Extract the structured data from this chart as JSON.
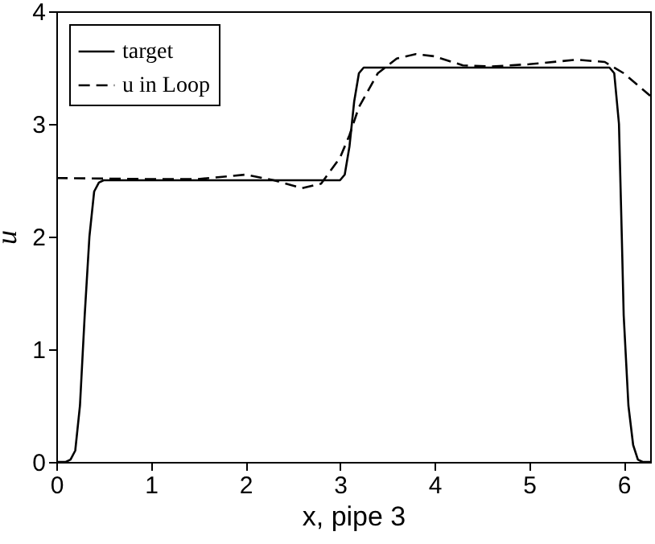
{
  "chart_data": {
    "type": "line",
    "xlabel": "x, pipe 3",
    "ylabel": "u",
    "xlim": [
      0,
      6.28
    ],
    "ylim": [
      0,
      4
    ],
    "xticks": [
      0,
      1,
      2,
      3,
      4,
      5,
      6
    ],
    "yticks": [
      0,
      1,
      2,
      3,
      4
    ],
    "grid": false,
    "legend": "top left",
    "marker": "none",
    "series": [
      {
        "name": "target",
        "color": "#000000",
        "line_style": "solid",
        "x": [
          0,
          0.1,
          0.15,
          0.2,
          0.25,
          0.3,
          0.35,
          0.4,
          0.45,
          0.5,
          3.0,
          3.05,
          3.1,
          3.15,
          3.2,
          3.25,
          5.85,
          5.9,
          5.95,
          5.98,
          6.0,
          6.05,
          6.1,
          6.15,
          6.2,
          6.28
        ],
        "values": [
          0,
          0,
          0.02,
          0.1,
          0.5,
          1.3,
          2.0,
          2.4,
          2.48,
          2.5,
          2.5,
          2.55,
          2.8,
          3.2,
          3.45,
          3.5,
          3.5,
          3.45,
          3.0,
          2.0,
          1.3,
          0.5,
          0.15,
          0.02,
          0,
          0
        ]
      },
      {
        "name": "u in Loop",
        "color": "#000000",
        "line_style": "dashed",
        "x": [
          0,
          1.0,
          1.5,
          2.0,
          2.3,
          2.6,
          2.8,
          3.0,
          3.1,
          3.2,
          3.4,
          3.6,
          3.8,
          4.0,
          4.3,
          4.6,
          5.0,
          5.5,
          5.8,
          6.0,
          6.28
        ],
        "values": [
          2.52,
          2.51,
          2.51,
          2.55,
          2.5,
          2.43,
          2.47,
          2.7,
          2.9,
          3.15,
          3.45,
          3.58,
          3.62,
          3.6,
          3.52,
          3.51,
          3.53,
          3.57,
          3.55,
          3.45,
          3.25
        ]
      }
    ]
  }
}
